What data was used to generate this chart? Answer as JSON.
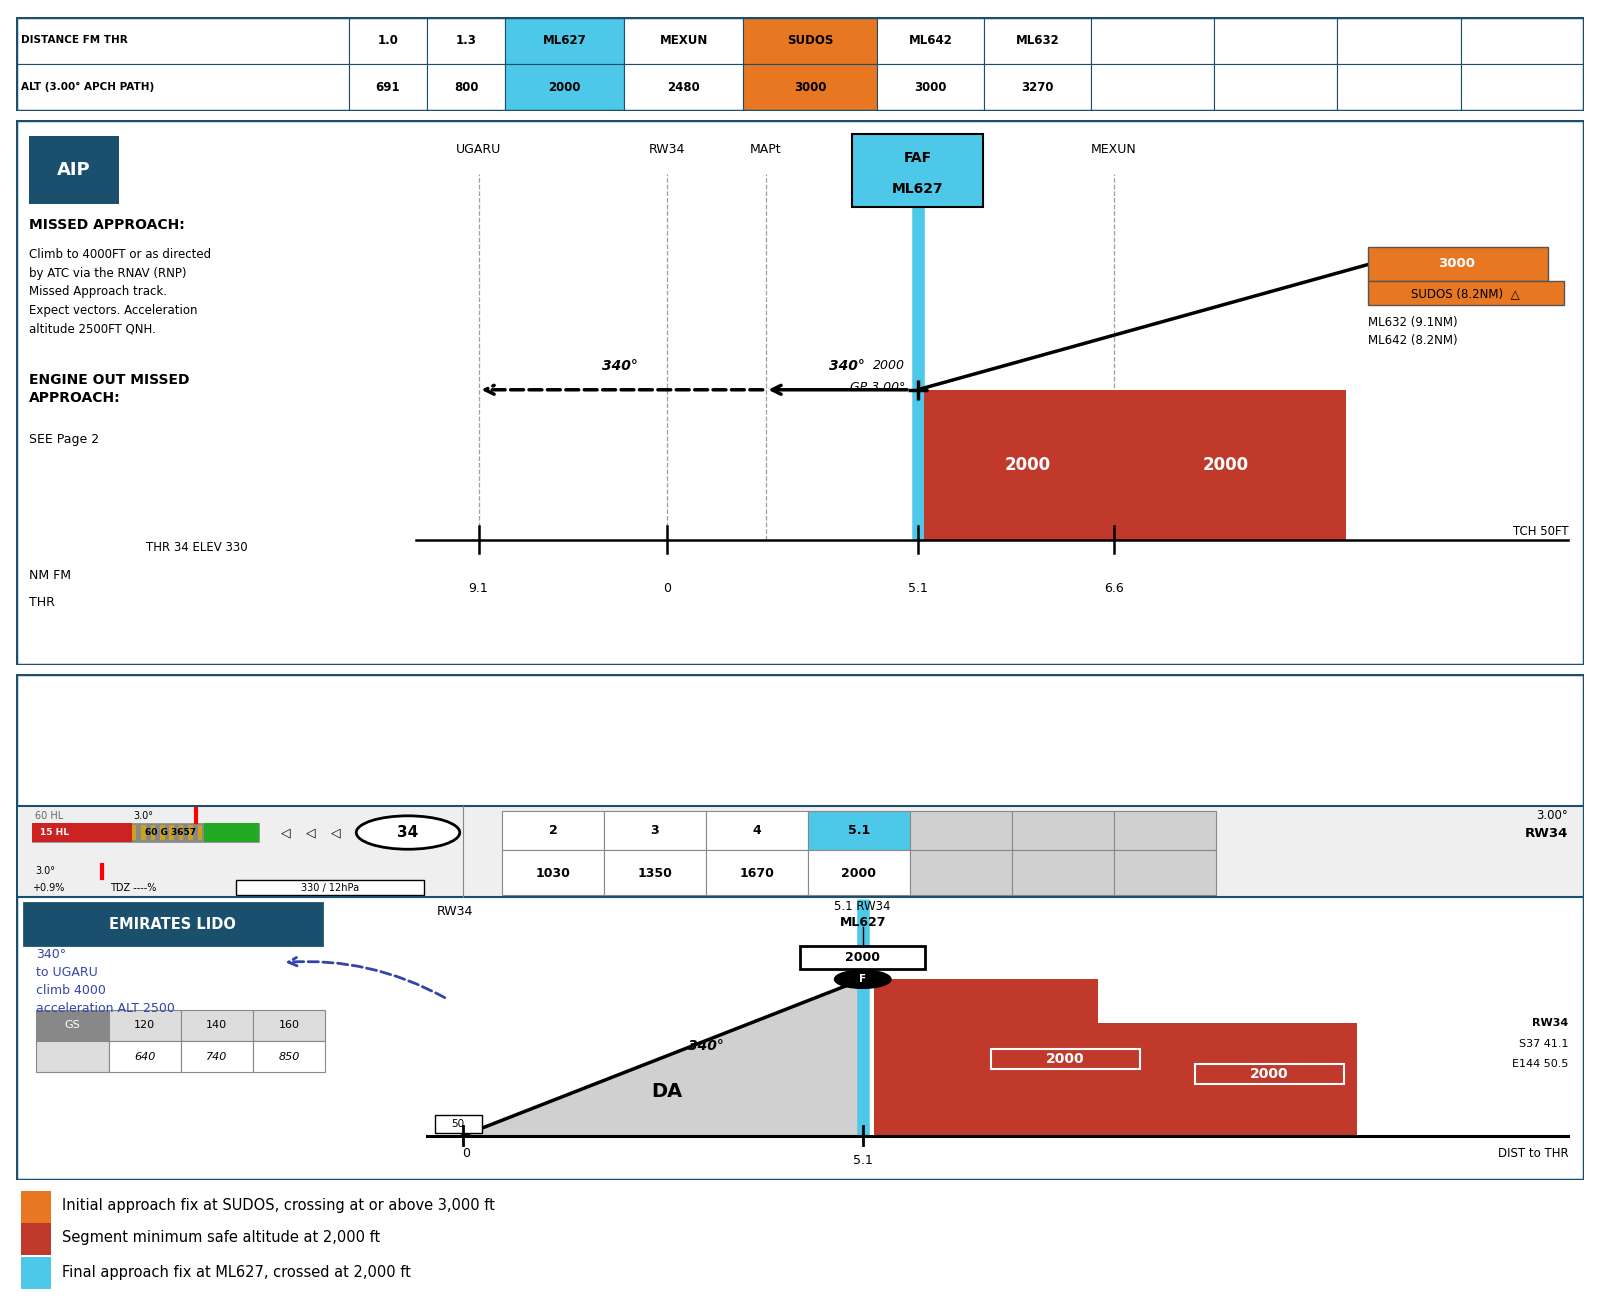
{
  "color_orange": "#E87722",
  "color_red": "#C0392B",
  "color_cyan": "#4DC8E8",
  "color_dark_teal": "#1A4F6E",
  "color_teal_bg": "#1A4F6E",
  "table_row1": [
    "DISTANCE FM THR",
    "1.0",
    "1.3",
    "ML627",
    "MEXUN",
    "SUDOS",
    "ML642",
    "ML632",
    "",
    "",
    "",
    ""
  ],
  "table_row2": [
    "ALT (3.00° APCH PATH)",
    "691",
    "800",
    "2000",
    "2480",
    "3000",
    "3000",
    "3270",
    "",
    "",
    "",
    ""
  ],
  "legend_items": [
    {
      "color": "#E87722",
      "text": "Initial approach fix at SUDOS, crossing at or above 3,000 ft"
    },
    {
      "color": "#C0392B",
      "text": "Segment minimum safe altitude at 2,000 ft"
    },
    {
      "color": "#4DC8E8",
      "text": "Final approach fix at ML627, crossed at 2,000 ft"
    }
  ]
}
